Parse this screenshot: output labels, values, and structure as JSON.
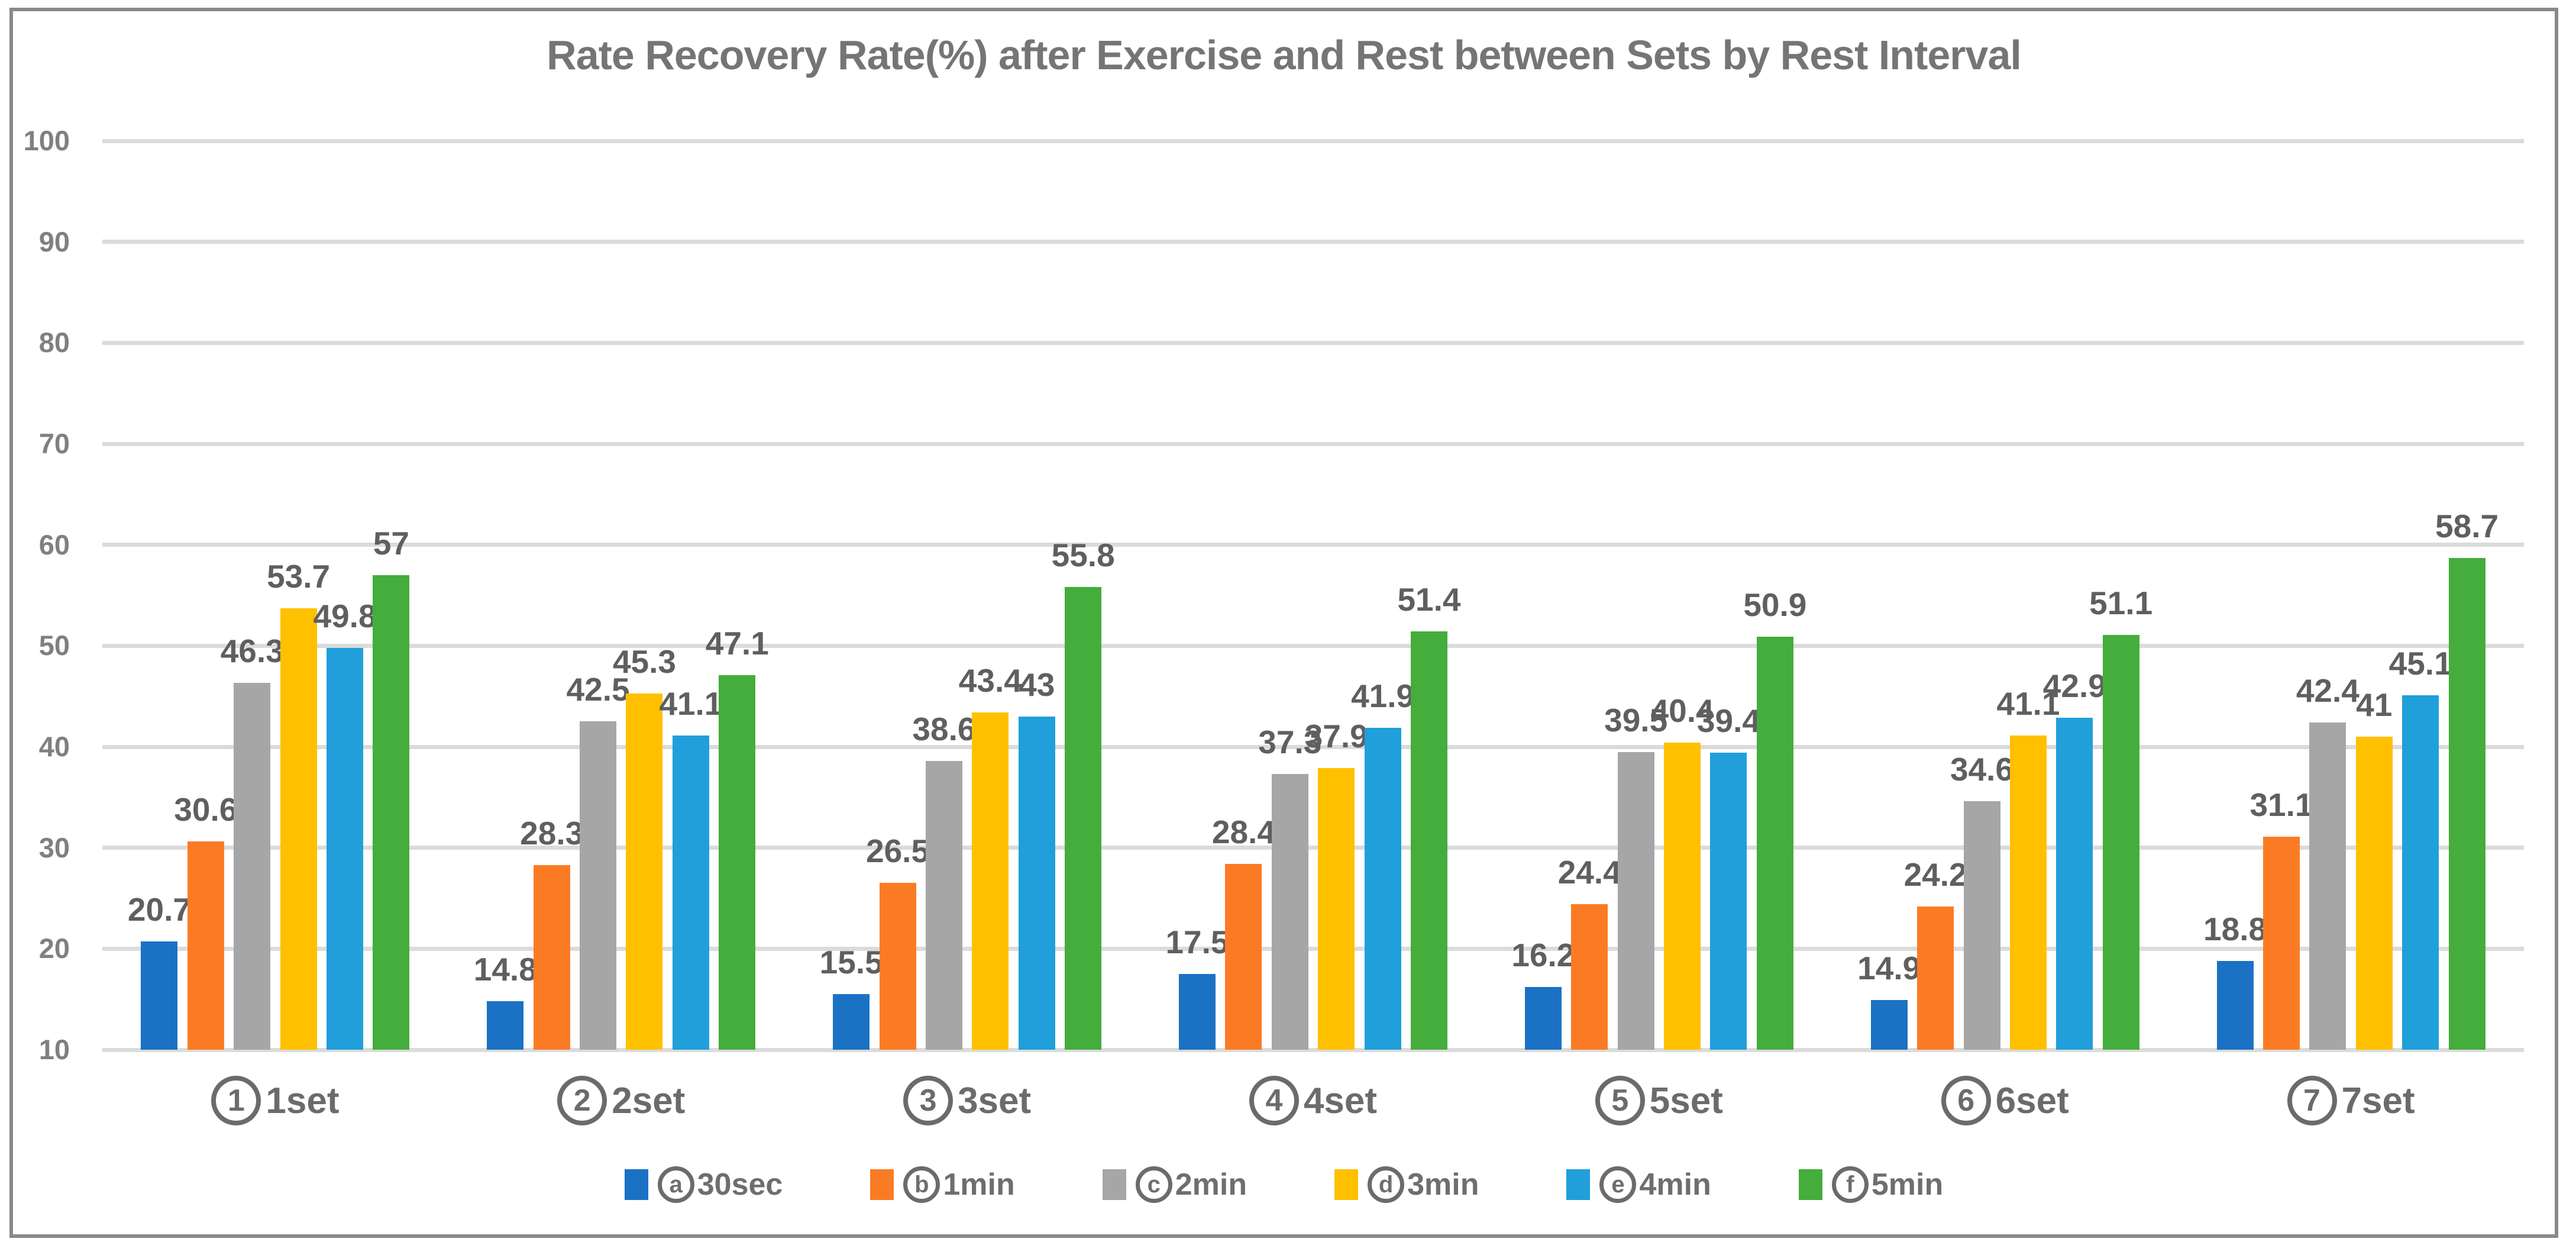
{
  "window": {
    "background": "#FFFFFF",
    "frame_border_color": "#898989"
  },
  "chart_data": {
    "type": "bar",
    "title": "Rate Recovery Rate(%) after Exercise and Rest between Sets by Rest Interval",
    "xlabel": "",
    "ylabel": "",
    "categories": [
      {
        "circle": "1",
        "label": "1set"
      },
      {
        "circle": "2",
        "label": "2set"
      },
      {
        "circle": "3",
        "label": "3set"
      },
      {
        "circle": "4",
        "label": "4set"
      },
      {
        "circle": "5",
        "label": "5set"
      },
      {
        "circle": "6",
        "label": "6set"
      },
      {
        "circle": "7",
        "label": "7set"
      }
    ],
    "series": [
      {
        "circle": "a",
        "name": "30sec",
        "color": "#1B72C4",
        "values": [
          20.7,
          14.8,
          15.5,
          17.5,
          16.2,
          14.9,
          18.8
        ]
      },
      {
        "circle": "b",
        "name": "1min",
        "color": "#FB7B25",
        "values": [
          30.6,
          28.3,
          26.5,
          28.4,
          24.4,
          24.2,
          31.1
        ]
      },
      {
        "circle": "c",
        "name": "2min",
        "color": "#A6A6A6",
        "values": [
          46.3,
          42.5,
          38.6,
          37.3,
          39.5,
          34.6,
          42.4
        ]
      },
      {
        "circle": "d",
        "name": "3min",
        "color": "#FFC000",
        "values": [
          53.7,
          45.3,
          43.4,
          37.9,
          40.4,
          41.1,
          41
        ]
      },
      {
        "circle": "e",
        "name": "4min",
        "color": "#209FDB",
        "values": [
          49.8,
          41.1,
          43,
          41.9,
          39.4,
          42.9,
          45.1
        ]
      },
      {
        "circle": "f",
        "name": "5min",
        "color": "#44AD3C",
        "values": [
          57,
          47.1,
          55.8,
          51.4,
          50.9,
          51.1,
          58.7
        ]
      }
    ],
    "y_axis": {
      "min": 10,
      "max": 100,
      "ticks": [
        100,
        90,
        80,
        70,
        60,
        50,
        40,
        30,
        20,
        10
      ]
    },
    "grid": true,
    "legend_position": "bottom",
    "data_labels": true,
    "styles": {
      "gridline_color": "#DBDBDB",
      "axis_label_color": "#808080",
      "data_label_color": "#5F5F5F",
      "category_label_color": "#6B6B6B",
      "legend_text_color": "#6E6E6E",
      "title_color": "#757575"
    }
  }
}
